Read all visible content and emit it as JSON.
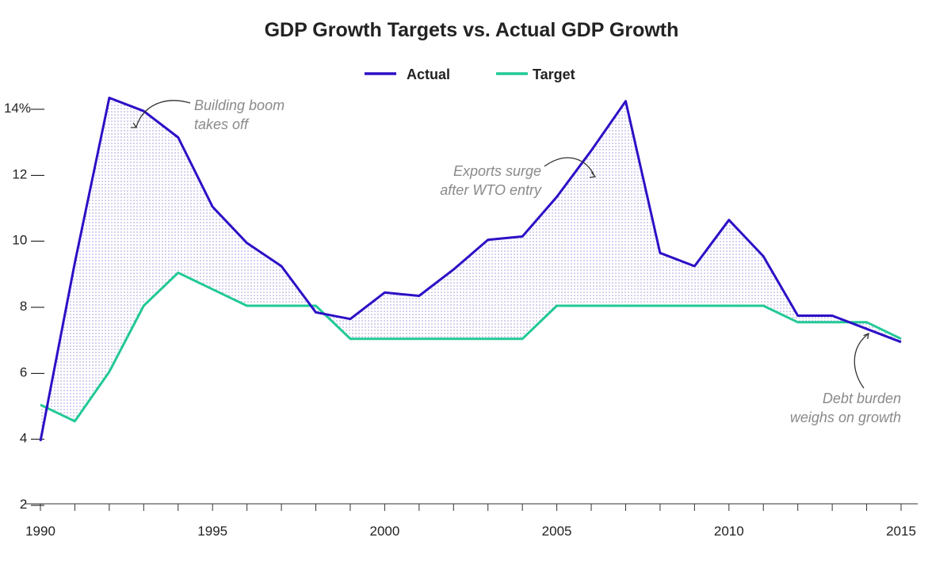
{
  "colors": {
    "actual": "#2b10c6",
    "target": "#22c995",
    "fill_dots": "#9b93d8",
    "axis": "#333333",
    "annotation": "#8a8a8a",
    "text": "#222222"
  },
  "chart_data": {
    "type": "line",
    "title": "GDP Growth Targets vs. Actual GDP Growth",
    "xlabel": "",
    "ylabel": "",
    "x": [
      1990,
      1991,
      1992,
      1993,
      1994,
      1995,
      1996,
      1997,
      1998,
      1999,
      2000,
      2001,
      2002,
      2003,
      2004,
      2005,
      2006,
      2007,
      2008,
      2009,
      2010,
      2011,
      2012,
      2013,
      2014,
      2015
    ],
    "series": [
      {
        "name": "Actual",
        "values": [
          3.9,
          9.3,
          14.3,
          13.9,
          13.1,
          11.0,
          9.9,
          9.2,
          7.8,
          7.6,
          8.4,
          8.3,
          9.1,
          10.0,
          10.1,
          11.3,
          12.7,
          14.2,
          9.6,
          9.2,
          10.6,
          9.5,
          7.7,
          7.7,
          7.3,
          6.9
        ]
      },
      {
        "name": "Target",
        "values": [
          5.0,
          4.5,
          6.0,
          8.0,
          9.0,
          8.5,
          8.0,
          8.0,
          8.0,
          7.0,
          7.0,
          7.0,
          7.0,
          7.0,
          7.0,
          8.0,
          8.0,
          8.0,
          8.0,
          8.0,
          8.0,
          8.0,
          7.5,
          7.5,
          7.5,
          7.0
        ]
      }
    ],
    "xlim": [
      1990,
      2015
    ],
    "ylim": [
      2,
      14
    ],
    "x_tick_labels": [
      "1990",
      "1995",
      "2000",
      "2005",
      "2010",
      "2015"
    ],
    "y_tick_labels": [
      {
        "value": 14,
        "label": "14%—"
      },
      {
        "value": 12,
        "label": "12 —"
      },
      {
        "value": 10,
        "label": "10 —"
      },
      {
        "value": 8,
        "label": "8 —"
      },
      {
        "value": 6,
        "label": "6 —"
      },
      {
        "value": 4,
        "label": "4 —"
      },
      {
        "value": 2,
        "label": "2 —"
      }
    ],
    "legend": [
      {
        "name": "Actual",
        "color_key": "actual"
      },
      {
        "name": "Target",
        "color_key": "target"
      }
    ],
    "legend_position": "top-center",
    "grid": false,
    "annotations": [
      {
        "id": "boom",
        "lines": [
          "Building boom",
          "takes off"
        ],
        "x": 1993,
        "y": 13.3
      },
      {
        "id": "wto",
        "lines": [
          "Exports surge",
          "after WTO entry"
        ],
        "x": 2006,
        "y": 12.1
      },
      {
        "id": "debt",
        "lines": [
          "Debt burden",
          "weighs on growth"
        ],
        "x": 2014.4,
        "y": 7.2
      }
    ]
  }
}
